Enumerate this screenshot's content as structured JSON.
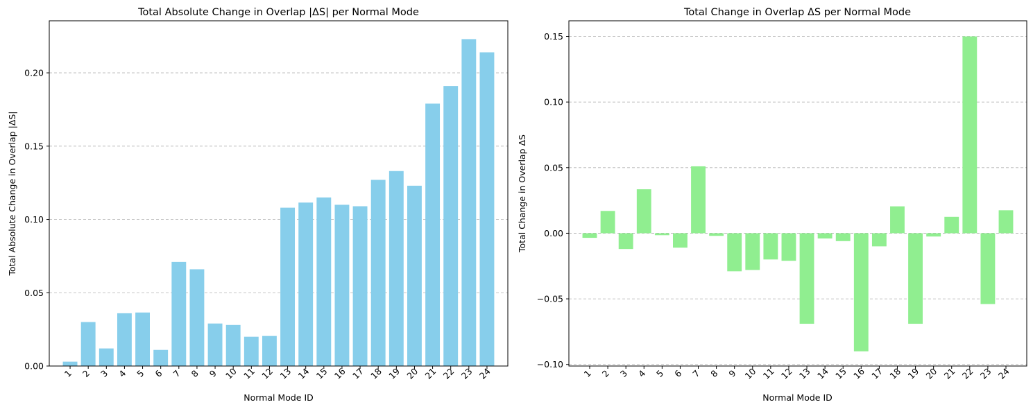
{
  "chart_data": [
    {
      "type": "bar",
      "title": "Total Absolute Change in Overlap |ΔS| per Normal Mode",
      "xlabel": "Normal Mode ID",
      "ylabel": "Total Absolute Change in Overlap |ΔS|",
      "categories": [
        "1",
        "2",
        "3",
        "4",
        "5",
        "6",
        "7",
        "8",
        "9",
        "10",
        "11",
        "12",
        "13",
        "14",
        "15",
        "16",
        "17",
        "18",
        "19",
        "20",
        "21",
        "22",
        "23",
        "24"
      ],
      "values": [
        0.003,
        0.03,
        0.012,
        0.036,
        0.0365,
        0.011,
        0.071,
        0.066,
        0.029,
        0.028,
        0.02,
        0.0205,
        0.108,
        0.1115,
        0.115,
        0.11,
        0.109,
        0.127,
        0.133,
        0.123,
        0.179,
        0.191,
        0.223,
        0.214
      ],
      "ylim": [
        0,
        0.2355
      ],
      "yticks": [
        "0.00",
        "0.05",
        "0.10",
        "0.15",
        "0.20"
      ],
      "color": "#87ceeb",
      "grid": "y-dashed"
    },
    {
      "type": "bar",
      "title": "Total Change in Overlap ΔS per Normal Mode",
      "xlabel": "Normal Mode ID",
      "ylabel": "Total Change in Overlap ΔS",
      "categories": [
        "1",
        "2",
        "3",
        "4",
        "5",
        "6",
        "7",
        "8",
        "9",
        "10",
        "11",
        "12",
        "13",
        "14",
        "15",
        "16",
        "17",
        "18",
        "19",
        "20",
        "21",
        "22",
        "23",
        "24"
      ],
      "values": [
        -0.0035,
        0.017,
        -0.012,
        0.0335,
        -0.0015,
        -0.011,
        0.051,
        -0.002,
        -0.029,
        -0.028,
        -0.02,
        -0.021,
        -0.069,
        -0.004,
        -0.006,
        -0.09,
        -0.01,
        0.0205,
        -0.069,
        -0.0025,
        0.0125,
        0.15,
        -0.054,
        0.0175
      ],
      "ylim": [
        -0.1012,
        0.1619
      ],
      "yticks": [
        "−0.10",
        "−0.05",
        "0.00",
        "0.05",
        "0.10",
        "0.15"
      ],
      "color": "#90ee90",
      "grid": "y-dashed"
    }
  ]
}
